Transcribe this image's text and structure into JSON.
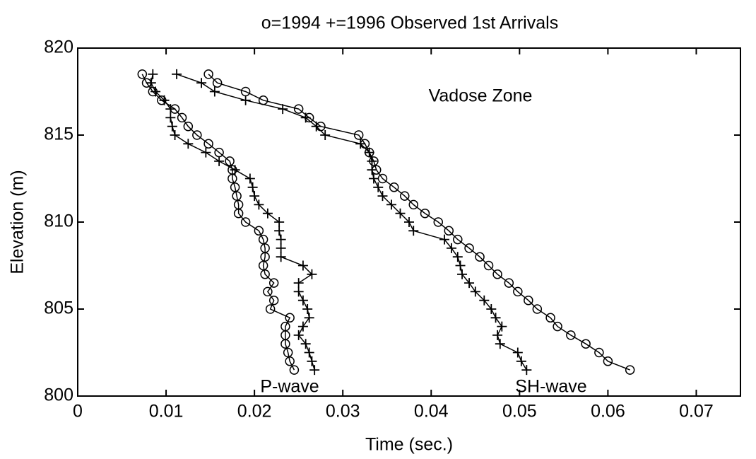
{
  "chart_data": {
    "type": "line",
    "title": "o=1994  +=1996  Observed 1st Arrivals",
    "x_label": "Time (sec.)",
    "y_label": "Elevation (m)",
    "annotations": [
      "P-wave",
      "SH-wave",
      "Vadose Zone"
    ],
    "xlim": [
      0,
      0.075
    ],
    "ylim": [
      800,
      820
    ],
    "xticks": [
      0,
      0.01,
      0.02,
      0.03,
      0.04,
      0.05,
      0.06,
      0.07
    ],
    "yticks": [
      800,
      805,
      810,
      815,
      820
    ],
    "series": [
      {
        "marker": "o",
        "color": "#000000",
        "x": [
          0.0073,
          0.0078,
          0.0085,
          0.0095,
          0.011,
          0.0118,
          0.0125,
          0.0135,
          0.0148,
          0.016,
          0.0172,
          0.0175,
          0.0175,
          0.0178,
          0.018,
          0.0182,
          0.0182,
          0.019,
          0.0205,
          0.021,
          0.0212,
          0.0212,
          0.021,
          0.0212,
          0.0222,
          0.0215,
          0.0222,
          0.0218,
          0.024,
          0.0235,
          0.0235,
          0.0235,
          0.0238,
          0.024,
          0.0245
        ],
        "y": [
          818.5,
          818,
          817.5,
          817,
          816.5,
          816,
          815.5,
          815,
          814.5,
          814,
          813.5,
          813,
          812.5,
          812,
          811.5,
          811,
          810.5,
          810,
          809.5,
          809,
          808.5,
          808,
          807.5,
          807,
          806.5,
          806,
          805.5,
          805,
          804.5,
          804,
          803.5,
          803,
          802.5,
          802,
          801.5
        ]
      },
      {
        "marker": "+",
        "color": "#000000",
        "x": [
          0.0085,
          0.0083,
          0.0088,
          0.0098,
          0.0105,
          0.0105,
          0.0107,
          0.011,
          0.0125,
          0.0145,
          0.016,
          0.0178,
          0.0195,
          0.0198,
          0.02,
          0.0205,
          0.0215,
          0.0228,
          0.0228,
          0.023,
          0.023,
          0.023,
          0.0255,
          0.0265,
          0.025,
          0.025,
          0.0255,
          0.026,
          0.0262,
          0.0255,
          0.025,
          0.0258,
          0.0262,
          0.0265,
          0.0268
        ],
        "y": [
          818.5,
          818,
          817.5,
          817,
          816.5,
          816,
          815.5,
          815,
          814.5,
          814,
          813.5,
          813,
          812.5,
          812,
          811.5,
          811,
          810.5,
          810,
          809.5,
          809,
          808.5,
          808,
          807.5,
          807,
          806.5,
          806,
          805.5,
          805,
          804.5,
          804,
          803.5,
          803,
          802.5,
          802,
          801.5
        ]
      },
      {
        "marker": "o",
        "color": "#000000",
        "x": [
          0.0148,
          0.0158,
          0.019,
          0.021,
          0.025,
          0.0262,
          0.0275,
          0.0318,
          0.0325,
          0.033,
          0.0335,
          0.0338,
          0.0345,
          0.0358,
          0.037,
          0.038,
          0.0393,
          0.0408,
          0.042,
          0.043,
          0.0443,
          0.0455,
          0.0465,
          0.0475,
          0.0488,
          0.0498,
          0.051,
          0.052,
          0.0535,
          0.0543,
          0.0558,
          0.0575,
          0.059,
          0.06,
          0.0625
        ],
        "y": [
          818.5,
          818,
          817.5,
          817,
          816.5,
          816,
          815.5,
          815,
          814.5,
          814,
          813.5,
          813,
          812.5,
          812,
          811.5,
          811,
          810.5,
          810,
          809.5,
          809,
          808.5,
          808,
          807.5,
          807,
          806.5,
          806,
          805.5,
          805,
          804.5,
          804,
          803.5,
          803,
          802.5,
          802,
          801.5
        ]
      },
      {
        "marker": "+",
        "color": "#000000",
        "x": [
          0.0112,
          0.014,
          0.0155,
          0.019,
          0.0232,
          0.0258,
          0.027,
          0.028,
          0.032,
          0.033,
          0.0333,
          0.0333,
          0.0335,
          0.034,
          0.0345,
          0.0355,
          0.0365,
          0.0375,
          0.038,
          0.0415,
          0.0423,
          0.043,
          0.0433,
          0.0435,
          0.0443,
          0.045,
          0.046,
          0.0468,
          0.0473,
          0.048,
          0.0475,
          0.0478,
          0.0498,
          0.0502,
          0.0508
        ],
        "y": [
          818.5,
          818,
          817.5,
          817,
          816.5,
          816,
          815.5,
          815,
          814.5,
          814,
          813.5,
          813,
          812.5,
          812,
          811.5,
          811,
          810.5,
          810,
          809.5,
          809,
          808.5,
          808,
          807.5,
          807,
          806.5,
          806,
          805.5,
          805,
          804.5,
          804,
          803.5,
          803,
          802.5,
          802,
          801.5
        ]
      }
    ]
  }
}
